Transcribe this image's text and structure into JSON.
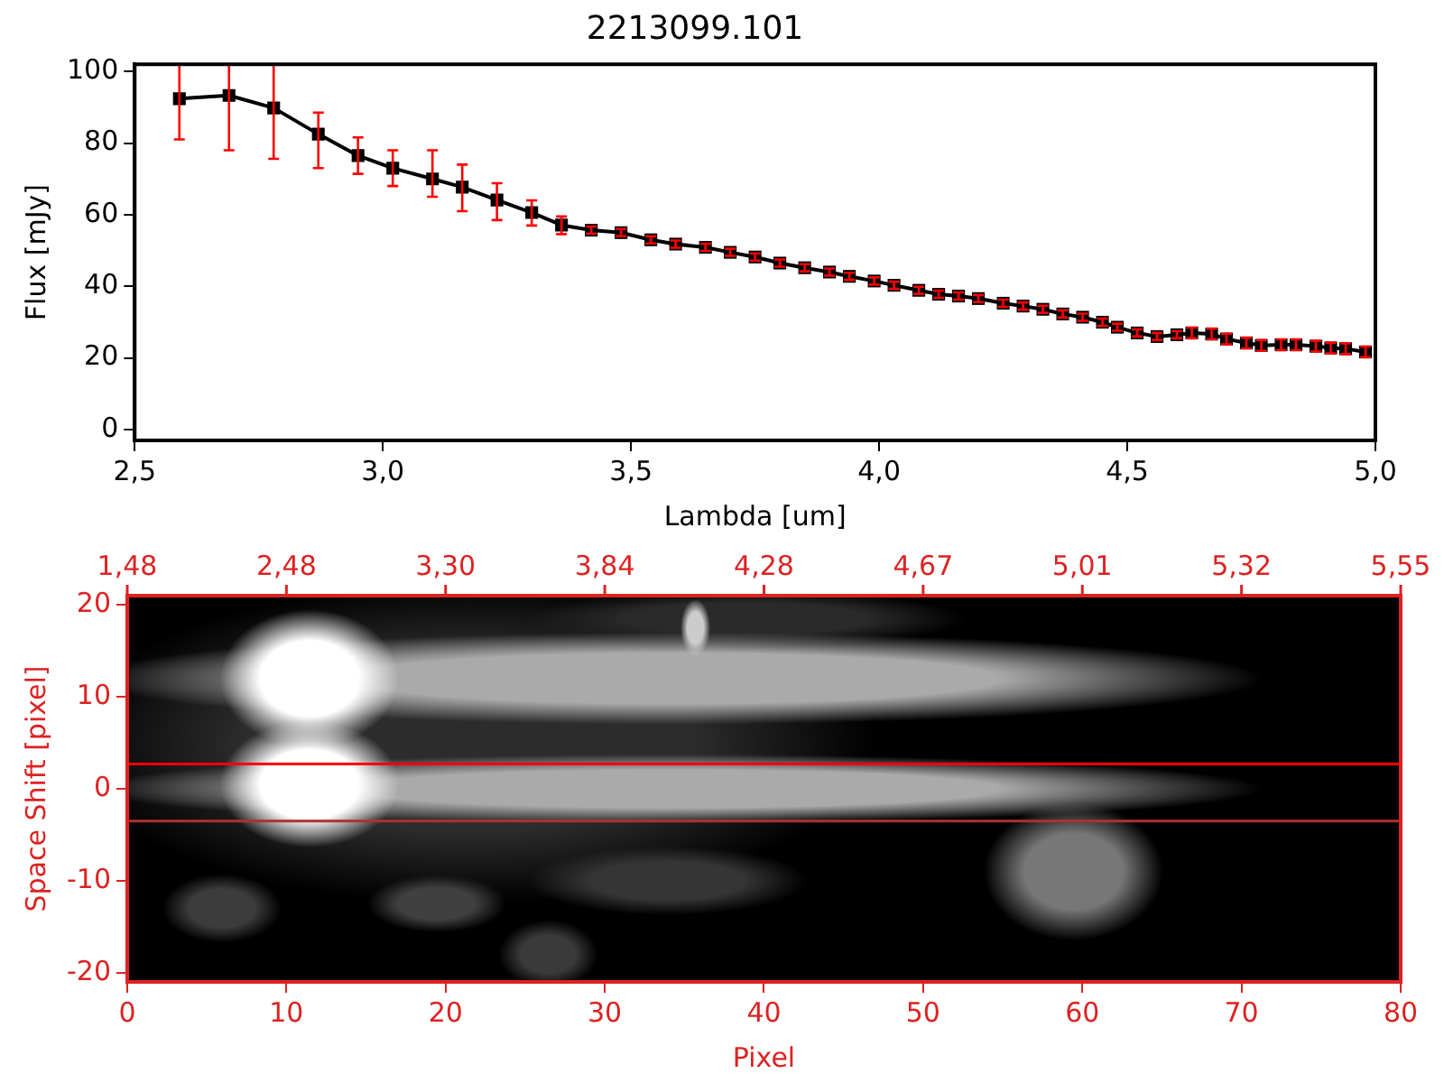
{
  "chart_data": [
    {
      "type": "line",
      "title": "2213099.101",
      "xlabel": "Lambda [um]",
      "ylabel": "Flux [mJy]",
      "marker": "square",
      "line_style": "solid",
      "grid": false,
      "legend": false,
      "xlim": [
        2.5,
        5.0
      ],
      "xticks": [
        {
          "value": 2.5,
          "label": "2,5"
        },
        {
          "value": 3.0,
          "label": "3,0"
        },
        {
          "value": 3.5,
          "label": "3,5"
        },
        {
          "value": 4.0,
          "label": "4,0"
        },
        {
          "value": 4.5,
          "label": "4,5"
        },
        {
          "value": 5.0,
          "label": "5,0"
        }
      ],
      "ylim": [
        -3,
        102
      ],
      "yticks": [
        0,
        20,
        40,
        60,
        80,
        100
      ],
      "x": [
        2.59,
        2.69,
        2.78,
        2.87,
        2.95,
        3.02,
        3.1,
        3.16,
        3.23,
        3.3,
        3.36,
        3.42,
        3.48,
        3.54,
        3.59,
        3.65,
        3.7,
        3.75,
        3.8,
        3.85,
        3.9,
        3.94,
        3.99,
        4.03,
        4.08,
        4.12,
        4.16,
        4.2,
        4.25,
        4.29,
        4.33,
        4.37,
        4.41,
        4.45,
        4.48,
        4.52,
        4.56,
        4.6,
        4.63,
        4.67,
        4.7,
        4.74,
        4.77,
        4.81,
        4.84,
        4.88,
        4.91,
        4.94,
        4.98
      ],
      "series": [
        {
          "color": "#000000",
          "values": [
            92.4,
            93.3,
            89.8,
            82.5,
            76.5,
            73.0,
            70.0,
            67.7,
            64.1,
            60.6,
            57.1,
            55.7,
            55.0,
            53.0,
            51.8,
            50.9,
            49.5,
            48.2,
            46.5,
            45.2,
            44.0,
            42.8,
            41.5,
            40.3,
            38.9,
            37.8,
            37.3,
            36.6,
            35.3,
            34.5,
            33.6,
            32.3,
            31.4,
            30.0,
            28.6,
            27.0,
            26.0,
            26.5,
            27.0,
            26.7,
            25.3,
            24.2,
            23.5,
            23.7,
            23.7,
            23.3,
            22.8,
            22.6,
            21.7
          ],
          "errors": [
            [
              81,
              102
            ],
            [
              78,
              102
            ],
            [
              75.6,
              102
            ],
            [
              73,
              88.5
            ],
            [
              71.4,
              81.6
            ],
            [
              68,
              78
            ],
            [
              65,
              78
            ],
            [
              61,
              74
            ],
            [
              58.5,
              68.8
            ],
            [
              57,
              64
            ],
            [
              54.6,
              59.5
            ],
            1,
            1,
            1,
            1,
            1,
            1,
            1,
            1,
            1,
            1,
            1,
            1,
            1,
            1,
            1,
            1,
            1,
            1,
            1,
            1,
            1,
            1,
            1,
            1,
            1,
            1,
            1,
            1.5,
            1.5,
            1.5,
            1.5,
            1.5,
            1.5,
            1.5,
            1.5,
            1.5,
            1.5,
            1.5
          ]
        }
      ]
    },
    {
      "type": "scatter",
      "xlabel": "Pixel",
      "ylabel": "Space Shift [pixel]",
      "xlim": [
        0,
        80
      ],
      "xticks": [
        0,
        10,
        20,
        30,
        40,
        50,
        60,
        70,
        80
      ],
      "annotations": [
        "1,48",
        "2,48",
        "3,30",
        "3,84",
        "4,28",
        "4,67",
        "5,01",
        "5,32",
        "5,55"
      ],
      "ylim": [
        -21,
        21
      ],
      "yticks": [
        -20,
        -10,
        0,
        10,
        20
      ],
      "ref_lines": [
        {
          "axis": "y",
          "value": 2.7,
          "color": "#ff0000"
        },
        {
          "axis": "y",
          "value": -3.5,
          "color": "#b03030"
        }
      ]
    }
  ]
}
